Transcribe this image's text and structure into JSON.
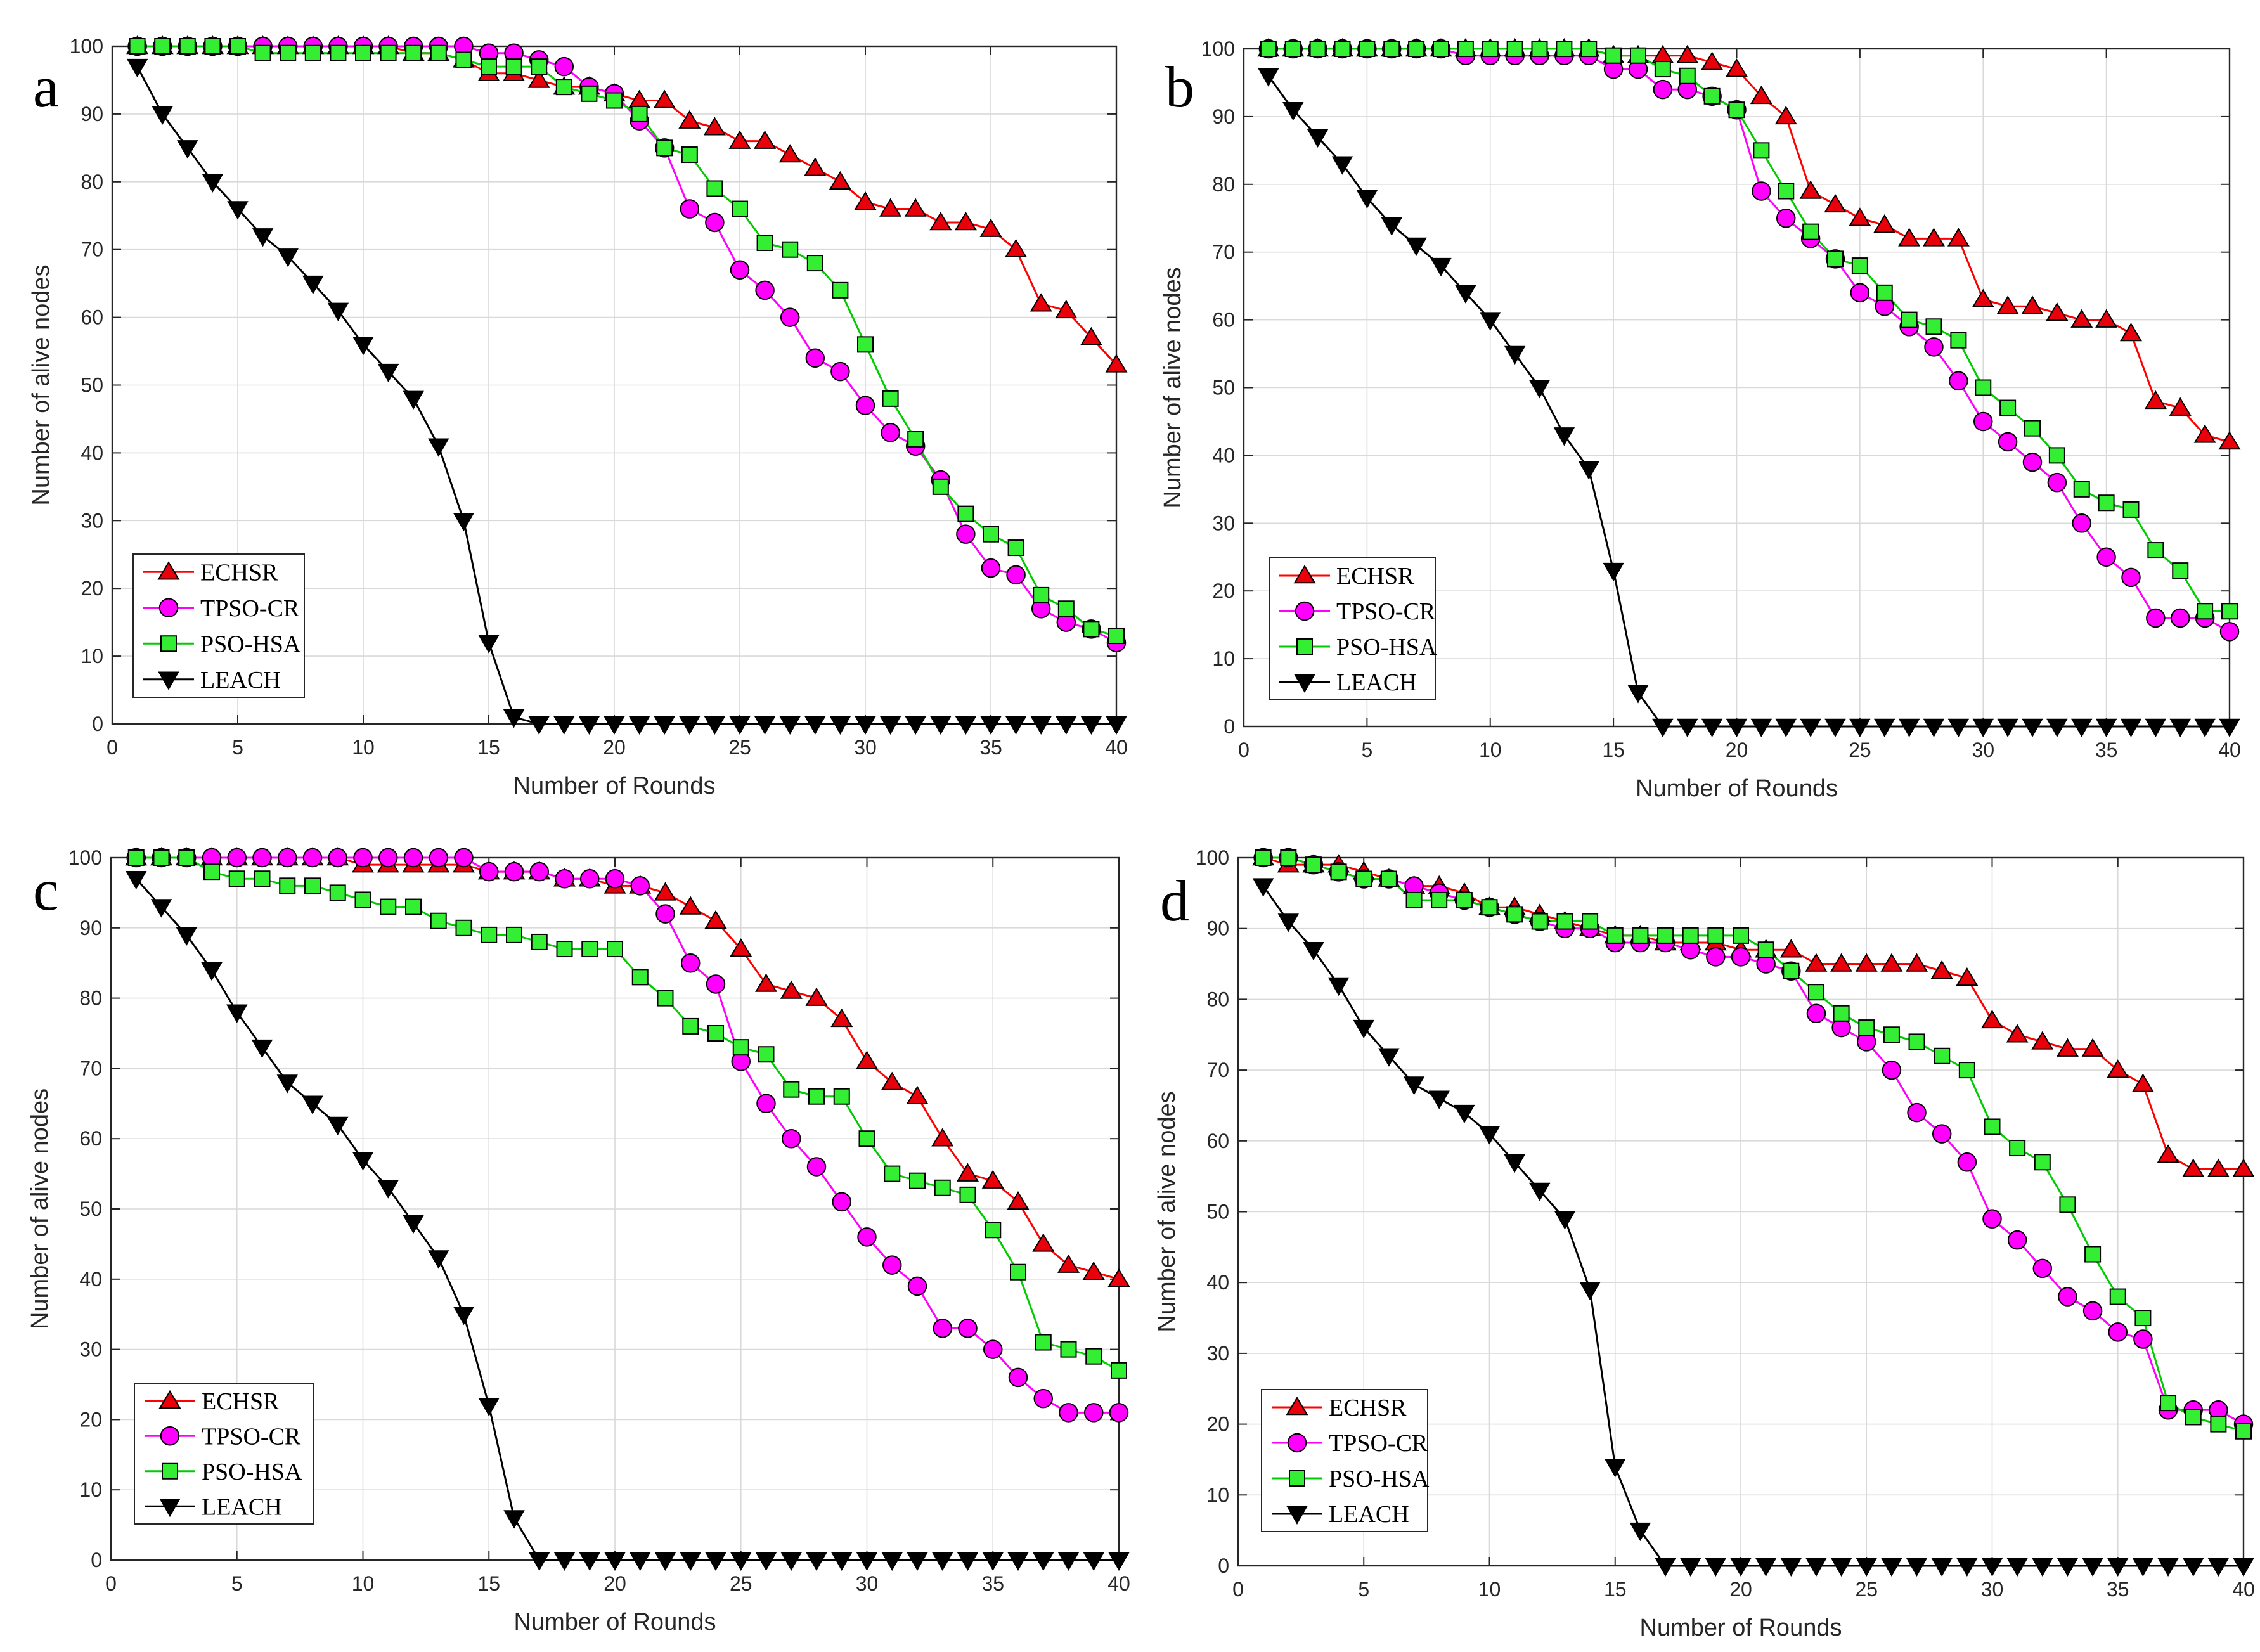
{
  "chart_data": [
    {
      "type": "line",
      "panel_label": "a",
      "xlabel": "Number of Rounds",
      "ylabel": "Number of alive nodes",
      "xlim": [
        0,
        40
      ],
      "ylim": [
        0,
        100
      ],
      "xticks": [
        0,
        5,
        10,
        15,
        20,
        25,
        30,
        35,
        40
      ],
      "yticks": [
        0,
        10,
        20,
        30,
        40,
        50,
        60,
        70,
        80,
        90,
        100
      ],
      "grid": true,
      "legend_position": "bottom-left",
      "x": [
        1,
        2,
        3,
        4,
        5,
        6,
        7,
        8,
        9,
        10,
        11,
        12,
        13,
        14,
        15,
        16,
        17,
        18,
        19,
        20,
        21,
        22,
        23,
        24,
        25,
        26,
        27,
        28,
        29,
        30,
        31,
        32,
        33,
        34,
        35,
        36,
        37,
        38,
        39,
        40
      ],
      "series": [
        {
          "name": "ECHSR",
          "color": "#ff0000",
          "marker": "triangle-up",
          "fill": "#e8000b",
          "values": [
            100,
            100,
            100,
            100,
            100,
            100,
            100,
            100,
            100,
            100,
            100,
            99,
            99,
            98,
            96,
            96,
            95,
            94,
            94,
            93,
            92,
            92,
            89,
            88,
            86,
            86,
            84,
            82,
            80,
            77,
            76,
            76,
            74,
            74,
            73,
            70,
            62,
            61,
            57,
            53
          ]
        },
        {
          "name": "TPSO-CR",
          "color": "#ff00ff",
          "marker": "circle",
          "fill": "#ff00ff",
          "values": [
            100,
            100,
            100,
            100,
            100,
            100,
            100,
            100,
            100,
            100,
            100,
            100,
            100,
            100,
            99,
            99,
            98,
            97,
            94,
            93,
            89,
            85,
            76,
            74,
            67,
            64,
            60,
            54,
            52,
            47,
            43,
            41,
            36,
            28,
            23,
            22,
            17,
            15,
            14,
            12
          ]
        },
        {
          "name": "PSO-HSA",
          "color": "#00cc00",
          "marker": "square",
          "fill": "#33ee33",
          "values": [
            100,
            100,
            100,
            100,
            100,
            99,
            99,
            99,
            99,
            99,
            99,
            99,
            99,
            98,
            97,
            97,
            97,
            94,
            93,
            92,
            90,
            85,
            84,
            79,
            76,
            71,
            70,
            68,
            64,
            56,
            48,
            42,
            35,
            31,
            28,
            26,
            19,
            17,
            14,
            13
          ]
        },
        {
          "name": "LEACH",
          "color": "#000000",
          "marker": "triangle-down",
          "fill": "#000000",
          "values": [
            97,
            90,
            85,
            80,
            76,
            72,
            69,
            65,
            61,
            56,
            52,
            48,
            41,
            30,
            12,
            1,
            0,
            0,
            0,
            0,
            0,
            0,
            0,
            0,
            0,
            0,
            0,
            0,
            0,
            0,
            0,
            0,
            0,
            0,
            0,
            0,
            0,
            0,
            0,
            0
          ]
        }
      ]
    },
    {
      "type": "line",
      "panel_label": "b",
      "xlabel": "Number of Rounds",
      "ylabel": "Number of alive nodes",
      "xlim": [
        0,
        40
      ],
      "ylim": [
        0,
        100
      ],
      "xticks": [
        0,
        5,
        10,
        15,
        20,
        25,
        30,
        35,
        40
      ],
      "yticks": [
        0,
        10,
        20,
        30,
        40,
        50,
        60,
        70,
        80,
        90,
        100
      ],
      "grid": true,
      "legend_position": "bottom-left",
      "x": [
        1,
        2,
        3,
        4,
        5,
        6,
        7,
        8,
        9,
        10,
        11,
        12,
        13,
        14,
        15,
        16,
        17,
        18,
        19,
        20,
        21,
        22,
        23,
        24,
        25,
        26,
        27,
        28,
        29,
        30,
        31,
        32,
        33,
        34,
        35,
        36,
        37,
        38,
        39,
        40
      ],
      "series": [
        {
          "name": "ECHSR",
          "color": "#ff0000",
          "marker": "triangle-up",
          "fill": "#e8000b",
          "values": [
            100,
            100,
            100,
            100,
            100,
            100,
            100,
            100,
            100,
            100,
            100,
            100,
            100,
            100,
            99,
            99,
            99,
            99,
            98,
            97,
            93,
            90,
            79,
            77,
            75,
            74,
            72,
            72,
            72,
            63,
            62,
            62,
            61,
            60,
            60,
            58,
            48,
            47,
            43,
            42
          ]
        },
        {
          "name": "TPSO-CR",
          "color": "#ff00ff",
          "marker": "circle",
          "fill": "#ff00ff",
          "values": [
            100,
            100,
            100,
            100,
            100,
            100,
            100,
            100,
            99,
            99,
            99,
            99,
            99,
            99,
            97,
            97,
            94,
            94,
            93,
            91,
            79,
            75,
            72,
            69,
            64,
            62,
            59,
            56,
            51,
            45,
            42,
            39,
            36,
            30,
            25,
            22,
            16,
            16,
            16,
            14
          ]
        },
        {
          "name": "PSO-HSA",
          "color": "#00cc00",
          "marker": "square",
          "fill": "#33ee33",
          "values": [
            100,
            100,
            100,
            100,
            100,
            100,
            100,
            100,
            100,
            100,
            100,
            100,
            100,
            100,
            99,
            99,
            97,
            96,
            93,
            91,
            85,
            79,
            73,
            69,
            68,
            64,
            60,
            59,
            57,
            50,
            47,
            44,
            40,
            35,
            33,
            32,
            26,
            23,
            17,
            17
          ]
        },
        {
          "name": "LEACH",
          "color": "#000000",
          "marker": "triangle-down",
          "fill": "#000000",
          "values": [
            96,
            91,
            87,
            83,
            78,
            74,
            71,
            68,
            64,
            60,
            55,
            50,
            43,
            38,
            23,
            5,
            0,
            0,
            0,
            0,
            0,
            0,
            0,
            0,
            0,
            0,
            0,
            0,
            0,
            0,
            0,
            0,
            0,
            0,
            0,
            0,
            0,
            0,
            0,
            0
          ]
        }
      ]
    },
    {
      "type": "line",
      "panel_label": "c",
      "xlabel": "Number of Rounds",
      "ylabel": "Number of alive nodes",
      "xlim": [
        0,
        40
      ],
      "ylim": [
        0,
        100
      ],
      "xticks": [
        0,
        5,
        10,
        15,
        20,
        25,
        30,
        35,
        40
      ],
      "yticks": [
        0,
        10,
        20,
        30,
        40,
        50,
        60,
        70,
        80,
        90,
        100
      ],
      "grid": true,
      "legend_position": "bottom-left",
      "x": [
        1,
        2,
        3,
        4,
        5,
        6,
        7,
        8,
        9,
        10,
        11,
        12,
        13,
        14,
        15,
        16,
        17,
        18,
        19,
        20,
        21,
        22,
        23,
        24,
        25,
        26,
        27,
        28,
        29,
        30,
        31,
        32,
        33,
        34,
        35,
        36,
        37,
        38,
        39,
        40
      ],
      "series": [
        {
          "name": "ECHSR",
          "color": "#ff0000",
          "marker": "triangle-up",
          "fill": "#e8000b",
          "values": [
            100,
            100,
            100,
            100,
            100,
            100,
            100,
            100,
            100,
            99,
            99,
            99,
            99,
            99,
            98,
            98,
            98,
            97,
            97,
            96,
            96,
            95,
            93,
            91,
            87,
            82,
            81,
            80,
            77,
            71,
            68,
            66,
            60,
            55,
            54,
            51,
            45,
            42,
            41,
            40
          ]
        },
        {
          "name": "TPSO-CR",
          "color": "#ff00ff",
          "marker": "circle",
          "fill": "#ff00ff",
          "values": [
            100,
            100,
            100,
            100,
            100,
            100,
            100,
            100,
            100,
            100,
            100,
            100,
            100,
            100,
            98,
            98,
            98,
            97,
            97,
            97,
            96,
            92,
            85,
            82,
            71,
            65,
            60,
            56,
            51,
            46,
            42,
            39,
            33,
            33,
            30,
            26,
            23,
            21,
            21,
            21
          ]
        },
        {
          "name": "PSO-HSA",
          "color": "#00cc00",
          "marker": "square",
          "fill": "#33ee33",
          "values": [
            100,
            100,
            100,
            98,
            97,
            97,
            96,
            96,
            95,
            94,
            93,
            93,
            91,
            90,
            89,
            89,
            88,
            87,
            87,
            87,
            83,
            80,
            76,
            75,
            73,
            72,
            67,
            66,
            66,
            60,
            55,
            54,
            53,
            52,
            47,
            41,
            31,
            30,
            29,
            27
          ]
        },
        {
          "name": "LEACH",
          "color": "#000000",
          "marker": "triangle-down",
          "fill": "#000000",
          "values": [
            97,
            93,
            89,
            84,
            78,
            73,
            68,
            65,
            62,
            57,
            53,
            48,
            43,
            35,
            22,
            6,
            0,
            0,
            0,
            0,
            0,
            0,
            0,
            0,
            0,
            0,
            0,
            0,
            0,
            0,
            0,
            0,
            0,
            0,
            0,
            0,
            0,
            0,
            0,
            0
          ]
        }
      ]
    },
    {
      "type": "line",
      "panel_label": "d",
      "xlabel": "Number of Rounds",
      "ylabel": "Number of alive nodes",
      "xlim": [
        0,
        40
      ],
      "ylim": [
        0,
        100
      ],
      "xticks": [
        0,
        5,
        10,
        15,
        20,
        25,
        30,
        35,
        40
      ],
      "yticks": [
        0,
        10,
        20,
        30,
        40,
        50,
        60,
        70,
        80,
        90,
        100
      ],
      "grid": true,
      "legend_position": "bottom-left",
      "x": [
        1,
        2,
        3,
        4,
        5,
        6,
        7,
        8,
        9,
        10,
        11,
        12,
        13,
        14,
        15,
        16,
        17,
        18,
        19,
        20,
        21,
        22,
        23,
        24,
        25,
        26,
        27,
        28,
        29,
        30,
        31,
        32,
        33,
        34,
        35,
        36,
        37,
        38,
        39,
        40
      ],
      "series": [
        {
          "name": "ECHSR",
          "color": "#ff0000",
          "marker": "triangle-up",
          "fill": "#e8000b",
          "values": [
            100,
            99,
            99,
            99,
            98,
            97,
            96,
            96,
            95,
            93,
            93,
            92,
            91,
            90,
            89,
            89,
            88,
            88,
            88,
            87,
            87,
            87,
            85,
            85,
            85,
            85,
            85,
            84,
            83,
            77,
            75,
            74,
            73,
            73,
            70,
            68,
            58,
            56,
            56,
            56
          ]
        },
        {
          "name": "TPSO-CR",
          "color": "#ff00ff",
          "marker": "circle",
          "fill": "#ff00ff",
          "values": [
            100,
            100,
            99,
            98,
            97,
            97,
            96,
            95,
            94,
            93,
            92,
            91,
            90,
            90,
            88,
            88,
            88,
            87,
            86,
            86,
            85,
            84,
            78,
            76,
            74,
            70,
            64,
            61,
            57,
            49,
            46,
            42,
            38,
            36,
            33,
            32,
            22,
            22,
            22,
            20
          ]
        },
        {
          "name": "PSO-HSA",
          "color": "#00cc00",
          "marker": "square",
          "fill": "#33ee33",
          "values": [
            100,
            100,
            99,
            98,
            97,
            97,
            94,
            94,
            94,
            93,
            92,
            91,
            91,
            91,
            89,
            89,
            89,
            89,
            89,
            89,
            87,
            84,
            81,
            78,
            76,
            75,
            74,
            72,
            70,
            62,
            59,
            57,
            51,
            44,
            38,
            35,
            23,
            21,
            20,
            19
          ]
        },
        {
          "name": "LEACH",
          "color": "#000000",
          "marker": "triangle-down",
          "fill": "#000000",
          "values": [
            96,
            91,
            87,
            82,
            76,
            72,
            68,
            66,
            64,
            61,
            57,
            53,
            49,
            39,
            14,
            5,
            0,
            0,
            0,
            0,
            0,
            0,
            0,
            0,
            0,
            0,
            0,
            0,
            0,
            0,
            0,
            0,
            0,
            0,
            0,
            0,
            0,
            0,
            0,
            0
          ]
        }
      ]
    }
  ]
}
